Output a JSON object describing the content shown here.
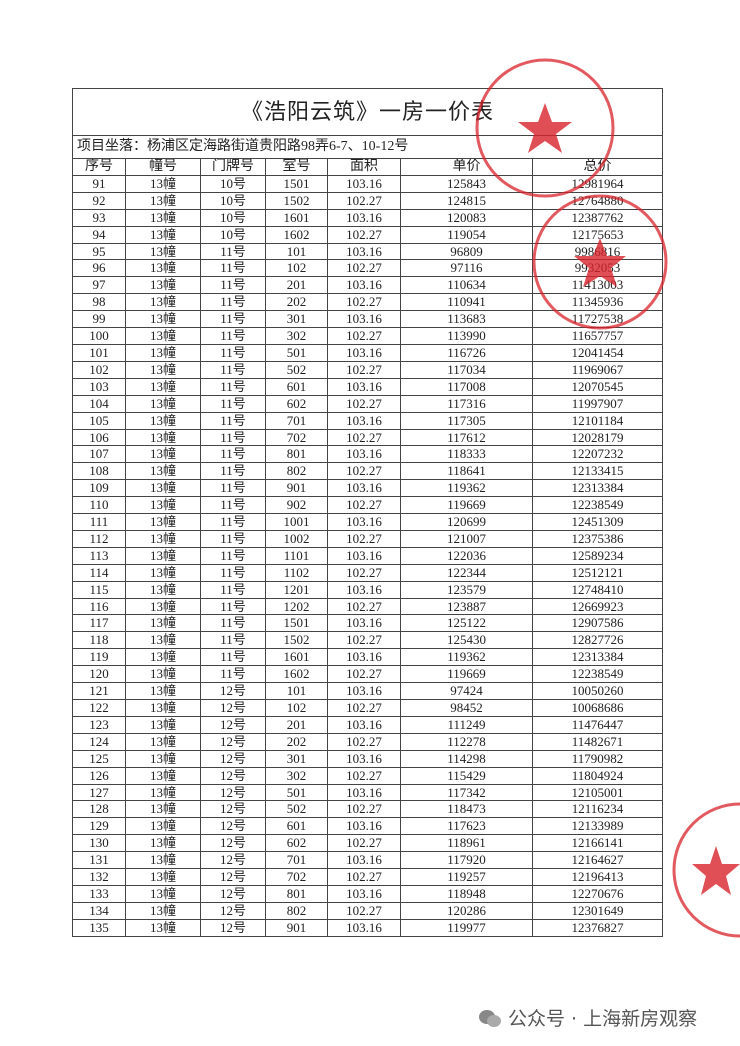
{
  "title": "《浩阳云筑》一房一价表",
  "location": "项目坐落：杨浦区定海路街道贵阳路98弄6-7、10-12号",
  "table": {
    "headers": [
      "序号",
      "幢号",
      "门牌号",
      "室号",
      "面积",
      "单价",
      "总价"
    ],
    "rows": [
      [
        "91",
        "13幢",
        "10号",
        "1501",
        "103.16",
        "125843",
        "12981964"
      ],
      [
        "92",
        "13幢",
        "10号",
        "1502",
        "102.27",
        "124815",
        "12764880"
      ],
      [
        "93",
        "13幢",
        "10号",
        "1601",
        "103.16",
        "120083",
        "12387762"
      ],
      [
        "94",
        "13幢",
        "10号",
        "1602",
        "102.27",
        "119054",
        "12175653"
      ],
      [
        "95",
        "13幢",
        "11号",
        "101",
        "103.16",
        "96809",
        "9986816"
      ],
      [
        "96",
        "13幢",
        "11号",
        "102",
        "102.27",
        "97116",
        "9932053"
      ],
      [
        "97",
        "13幢",
        "11号",
        "201",
        "103.16",
        "110634",
        "11413003"
      ],
      [
        "98",
        "13幢",
        "11号",
        "202",
        "102.27",
        "110941",
        "11345936"
      ],
      [
        "99",
        "13幢",
        "11号",
        "301",
        "103.16",
        "113683",
        "11727538"
      ],
      [
        "100",
        "13幢",
        "11号",
        "302",
        "102.27",
        "113990",
        "11657757"
      ],
      [
        "101",
        "13幢",
        "11号",
        "501",
        "103.16",
        "116726",
        "12041454"
      ],
      [
        "102",
        "13幢",
        "11号",
        "502",
        "102.27",
        "117034",
        "11969067"
      ],
      [
        "103",
        "13幢",
        "11号",
        "601",
        "103.16",
        "117008",
        "12070545"
      ],
      [
        "104",
        "13幢",
        "11号",
        "602",
        "102.27",
        "117316",
        "11997907"
      ],
      [
        "105",
        "13幢",
        "11号",
        "701",
        "103.16",
        "117305",
        "12101184"
      ],
      [
        "106",
        "13幢",
        "11号",
        "702",
        "102.27",
        "117612",
        "12028179"
      ],
      [
        "107",
        "13幢",
        "11号",
        "801",
        "103.16",
        "118333",
        "12207232"
      ],
      [
        "108",
        "13幢",
        "11号",
        "802",
        "102.27",
        "118641",
        "12133415"
      ],
      [
        "109",
        "13幢",
        "11号",
        "901",
        "103.16",
        "119362",
        "12313384"
      ],
      [
        "110",
        "13幢",
        "11号",
        "902",
        "102.27",
        "119669",
        "12238549"
      ],
      [
        "111",
        "13幢",
        "11号",
        "1001",
        "103.16",
        "120699",
        "12451309"
      ],
      [
        "112",
        "13幢",
        "11号",
        "1002",
        "102.27",
        "121007",
        "12375386"
      ],
      [
        "113",
        "13幢",
        "11号",
        "1101",
        "103.16",
        "122036",
        "12589234"
      ],
      [
        "114",
        "13幢",
        "11号",
        "1102",
        "102.27",
        "122344",
        "12512121"
      ],
      [
        "115",
        "13幢",
        "11号",
        "1201",
        "103.16",
        "123579",
        "12748410"
      ],
      [
        "116",
        "13幢",
        "11号",
        "1202",
        "102.27",
        "123887",
        "12669923"
      ],
      [
        "117",
        "13幢",
        "11号",
        "1501",
        "103.16",
        "125122",
        "12907586"
      ],
      [
        "118",
        "13幢",
        "11号",
        "1502",
        "102.27",
        "125430",
        "12827726"
      ],
      [
        "119",
        "13幢",
        "11号",
        "1601",
        "103.16",
        "119362",
        "12313384"
      ],
      [
        "120",
        "13幢",
        "11号",
        "1602",
        "102.27",
        "119669",
        "12238549"
      ],
      [
        "121",
        "13幢",
        "12号",
        "101",
        "103.16",
        "97424",
        "10050260"
      ],
      [
        "122",
        "13幢",
        "12号",
        "102",
        "102.27",
        "98452",
        "10068686"
      ],
      [
        "123",
        "13幢",
        "12号",
        "201",
        "103.16",
        "111249",
        "11476447"
      ],
      [
        "124",
        "13幢",
        "12号",
        "202",
        "102.27",
        "112278",
        "11482671"
      ],
      [
        "125",
        "13幢",
        "12号",
        "301",
        "103.16",
        "114298",
        "11790982"
      ],
      [
        "126",
        "13幢",
        "12号",
        "302",
        "102.27",
        "115429",
        "11804924"
      ],
      [
        "127",
        "13幢",
        "12号",
        "501",
        "103.16",
        "117342",
        "12105001"
      ],
      [
        "128",
        "13幢",
        "12号",
        "502",
        "102.27",
        "118473",
        "12116234"
      ],
      [
        "129",
        "13幢",
        "12号",
        "601",
        "103.16",
        "117623",
        "12133989"
      ],
      [
        "130",
        "13幢",
        "12号",
        "602",
        "102.27",
        "118961",
        "12166141"
      ],
      [
        "131",
        "13幢",
        "12号",
        "701",
        "103.16",
        "117920",
        "12164627"
      ],
      [
        "132",
        "13幢",
        "12号",
        "702",
        "102.27",
        "119257",
        "12196413"
      ],
      [
        "133",
        "13幢",
        "12号",
        "801",
        "103.16",
        "118948",
        "12270676"
      ],
      [
        "134",
        "13幢",
        "12号",
        "802",
        "102.27",
        "120286",
        "12301649"
      ],
      [
        "135",
        "13幢",
        "12号",
        "901",
        "103.16",
        "119977",
        "12376827"
      ]
    ]
  },
  "footer": "公众号 · 上海新房观察"
}
